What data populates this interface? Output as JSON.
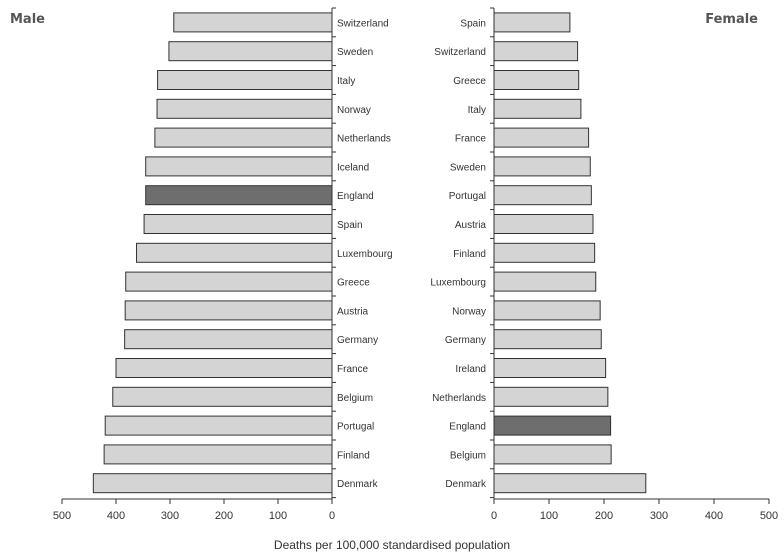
{
  "chart_data": [
    {
      "panel": "Male",
      "type": "bar",
      "orientation": "horizontal",
      "direction": "right-to-left",
      "categories": [
        "Switzerland",
        "Sweden",
        "Italy",
        "Norway",
        "Netherlands",
        "Iceland",
        "England",
        "Spain",
        "Luxembourg",
        "Greece",
        "Austria",
        "Germany",
        "France",
        "Belgium",
        "Portugal",
        "Finland",
        "Denmark"
      ],
      "values": [
        293,
        302,
        323,
        324,
        328,
        345,
        345,
        348,
        362,
        382,
        383,
        384,
        400,
        406,
        420,
        422,
        442
      ],
      "highlight": "England",
      "xlim": [
        0,
        500
      ],
      "xticks": [
        500,
        400,
        300,
        200,
        100,
        0
      ]
    },
    {
      "panel": "Female",
      "type": "bar",
      "orientation": "horizontal",
      "direction": "left-to-right",
      "categories": [
        "Spain",
        "Switzerland",
        "Greece",
        "Italy",
        "France",
        "Sweden",
        "Portugal",
        "Austria",
        "Finland",
        "Luxembourg",
        "Norway",
        "Germany",
        "Ireland",
        "Netherlands",
        "England",
        "Belgium",
        "Denmark"
      ],
      "values": [
        138,
        152,
        154,
        158,
        172,
        175,
        177,
        180,
        183,
        185,
        193,
        195,
        203,
        207,
        212,
        213,
        276
      ],
      "highlight": "England",
      "xlim": [
        0,
        500
      ],
      "xticks": [
        0,
        100,
        200,
        300,
        400,
        500
      ]
    }
  ],
  "labels": {
    "male": "Male",
    "female": "Female",
    "xlabel": "Deaths per 100,000 standardised population"
  },
  "colors": {
    "bar": "#d4d4d4",
    "highlight": "#6e6e6e",
    "outline": "#333333",
    "text": "#333333"
  }
}
